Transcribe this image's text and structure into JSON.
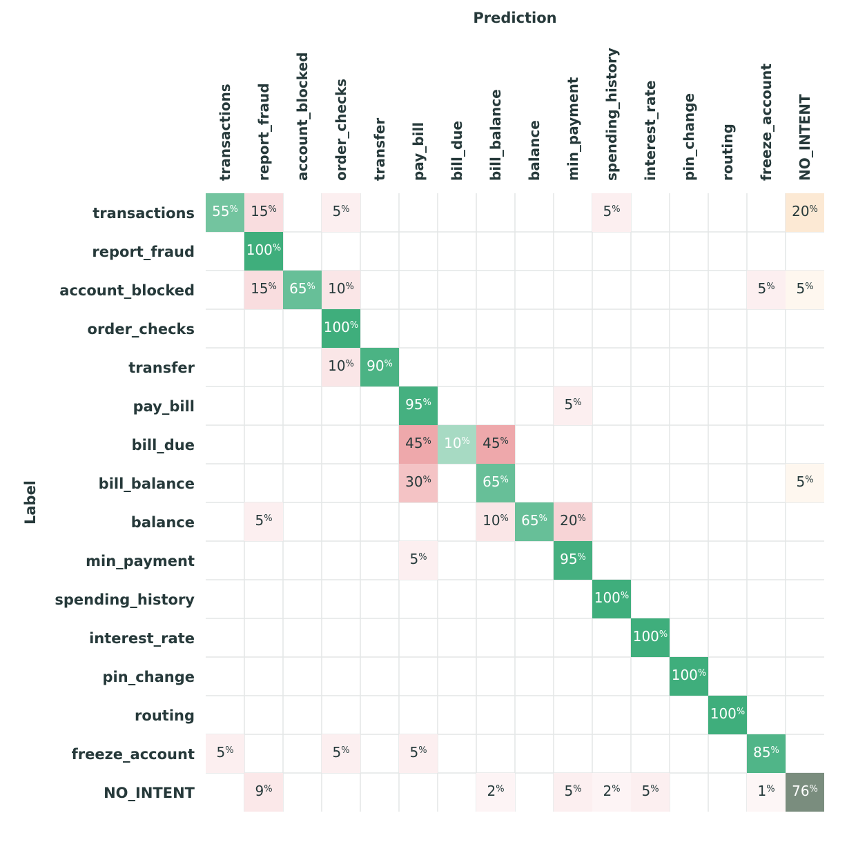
{
  "chart_data": {
    "type": "heatmap",
    "title": "Prediction",
    "xlabel": "Prediction",
    "ylabel": "Label",
    "x_categories": [
      "transactions",
      "report_fraud",
      "account_blocked",
      "order_checks",
      "transfer",
      "pay_bill",
      "bill_due",
      "bill_balance",
      "balance",
      "min_payment",
      "spending_history",
      "interest_rate",
      "pin_change",
      "routing",
      "freeze_account",
      "NO_INTENT"
    ],
    "y_categories": [
      "transactions",
      "report_fraud",
      "account_blocked",
      "order_checks",
      "transfer",
      "pay_bill",
      "bill_due",
      "bill_balance",
      "balance",
      "min_payment",
      "spending_history",
      "interest_rate",
      "pin_change",
      "routing",
      "freeze_account",
      "NO_INTENT"
    ],
    "value_suffix": "%",
    "values": [
      [
        55,
        15,
        null,
        5,
        null,
        null,
        null,
        null,
        null,
        null,
        5,
        null,
        null,
        null,
        null,
        20
      ],
      [
        null,
        100,
        null,
        null,
        null,
        null,
        null,
        null,
        null,
        null,
        null,
        null,
        null,
        null,
        null,
        null
      ],
      [
        null,
        15,
        65,
        10,
        null,
        null,
        null,
        null,
        null,
        null,
        null,
        null,
        null,
        null,
        5,
        5
      ],
      [
        null,
        null,
        null,
        100,
        null,
        null,
        null,
        null,
        null,
        null,
        null,
        null,
        null,
        null,
        null,
        null
      ],
      [
        null,
        null,
        null,
        10,
        90,
        null,
        null,
        null,
        null,
        null,
        null,
        null,
        null,
        null,
        null,
        null
      ],
      [
        null,
        null,
        null,
        null,
        null,
        95,
        null,
        null,
        null,
        5,
        null,
        null,
        null,
        null,
        null,
        null
      ],
      [
        null,
        null,
        null,
        null,
        null,
        45,
        10,
        45,
        null,
        null,
        null,
        null,
        null,
        null,
        null,
        null
      ],
      [
        null,
        null,
        null,
        null,
        null,
        30,
        null,
        65,
        null,
        null,
        null,
        null,
        null,
        null,
        null,
        5
      ],
      [
        null,
        5,
        null,
        null,
        null,
        null,
        null,
        10,
        65,
        20,
        null,
        null,
        null,
        null,
        null,
        null
      ],
      [
        null,
        null,
        null,
        null,
        null,
        5,
        null,
        null,
        null,
        95,
        null,
        null,
        null,
        null,
        null,
        null
      ],
      [
        null,
        null,
        null,
        null,
        null,
        null,
        null,
        null,
        null,
        null,
        100,
        null,
        null,
        null,
        null,
        null
      ],
      [
        null,
        null,
        null,
        null,
        null,
        null,
        null,
        null,
        null,
        null,
        null,
        100,
        null,
        null,
        null,
        null
      ],
      [
        null,
        null,
        null,
        null,
        null,
        null,
        null,
        null,
        null,
        null,
        null,
        null,
        100,
        null,
        null,
        null
      ],
      [
        null,
        null,
        null,
        null,
        null,
        null,
        null,
        null,
        null,
        null,
        null,
        null,
        null,
        100,
        null,
        null
      ],
      [
        5,
        null,
        null,
        5,
        null,
        5,
        null,
        null,
        null,
        null,
        null,
        null,
        null,
        null,
        85,
        null
      ],
      [
        null,
        9,
        null,
        null,
        null,
        null,
        null,
        2,
        null,
        5,
        2,
        5,
        null,
        null,
        1,
        76
      ]
    ],
    "colors": {
      "correct": "#3fae7c",
      "misclassified": "#e8868b",
      "to_no_intent": "#f6c48e",
      "no_intent_correct": "#7a8d7e",
      "grid": "#e3e6e6",
      "text_dark": "#26393a",
      "text_light": "#ffffff"
    }
  }
}
